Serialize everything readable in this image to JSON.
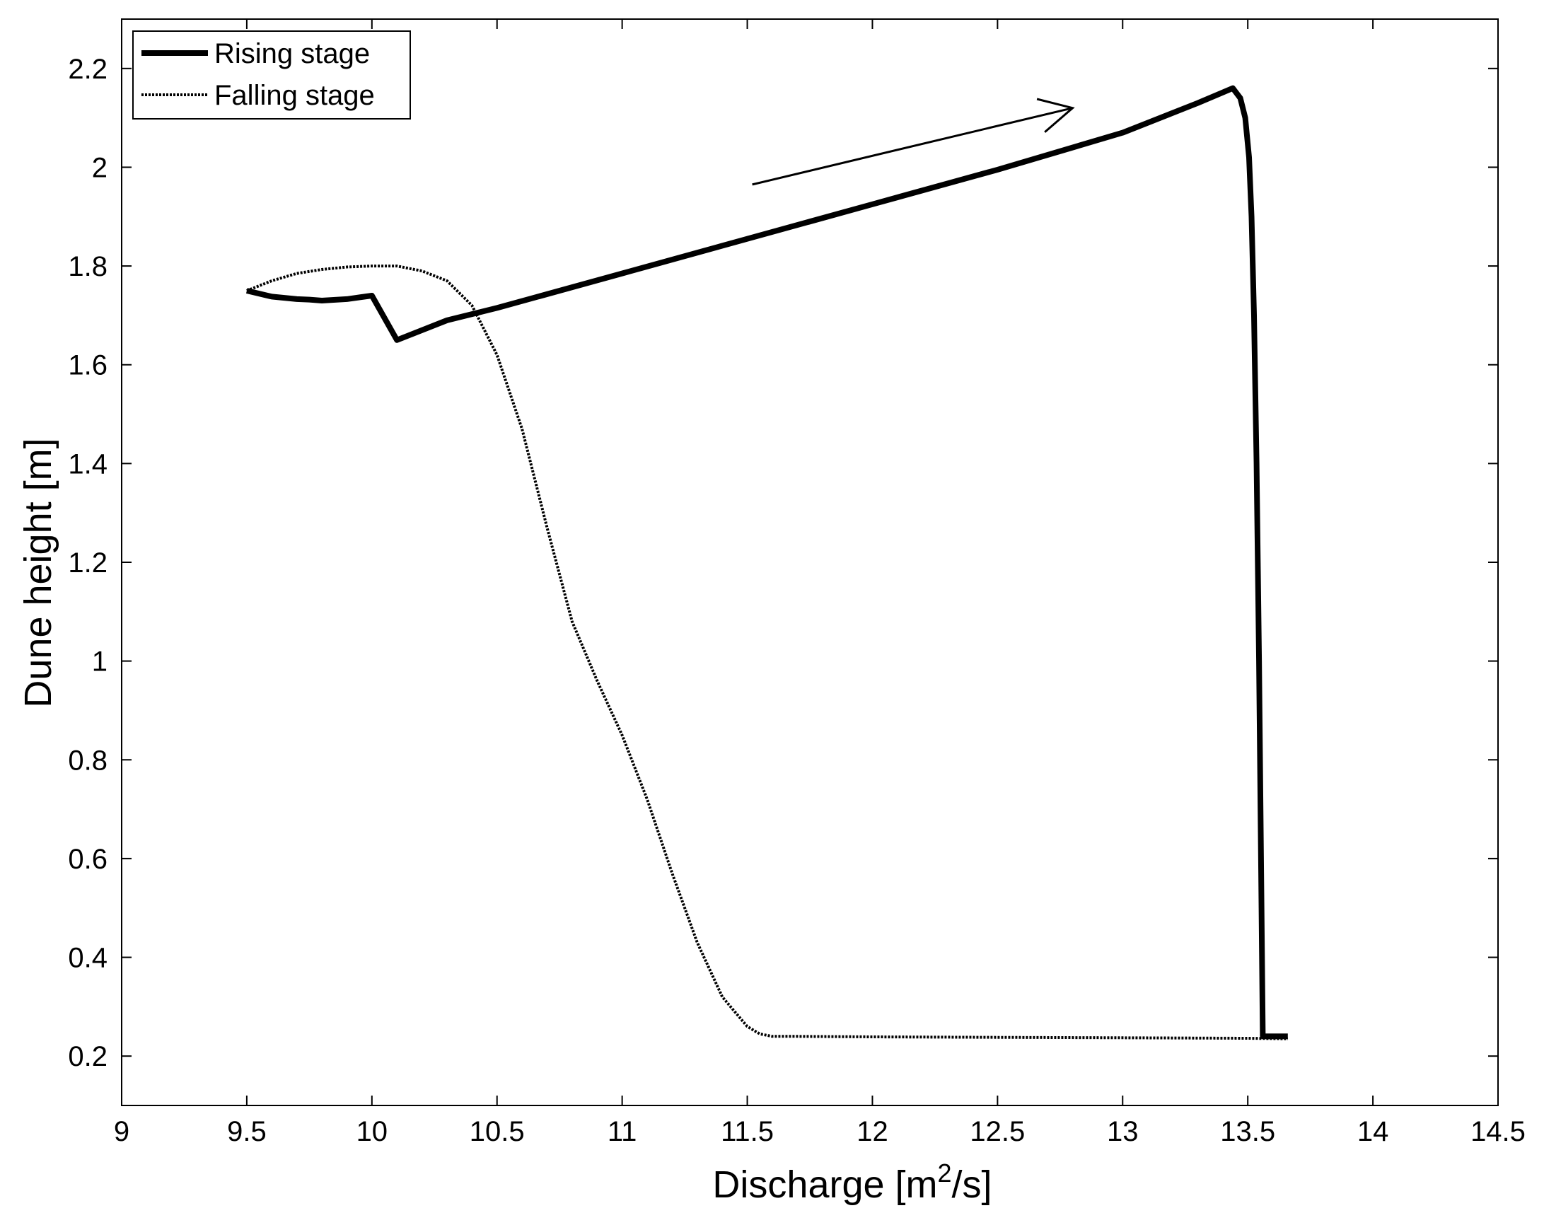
{
  "chart_data": {
    "type": "line",
    "title": "",
    "xlabel": "Discharge [m²/s]",
    "xlabel_parts": {
      "before": "Discharge [m",
      "superscript": "2",
      "after": "/s]"
    },
    "ylabel": "Dune height [m]",
    "xlim": [
      9,
      14.5
    ],
    "ylim": [
      0.1,
      2.3
    ],
    "x_ticks": [
      9,
      9.5,
      10,
      10.5,
      11,
      11.5,
      12,
      12.5,
      13,
      13.5,
      14,
      14.5
    ],
    "x_tick_labels": [
      "9",
      "9.5",
      "10",
      "10.5",
      "11",
      "11.5",
      "12",
      "12.5",
      "13",
      "13.5",
      "14",
      "14.5"
    ],
    "y_ticks": [
      0.2,
      0.4,
      0.6,
      0.8,
      1.0,
      1.2,
      1.4,
      1.6,
      1.8,
      2.0,
      2.2
    ],
    "y_tick_labels": [
      "0.2",
      "0.4",
      "0.6",
      "0.8",
      "1",
      "1.2",
      "1.4",
      "1.6",
      "1.8",
      "2",
      "2.2"
    ],
    "grid": false,
    "legend_position": "top-left",
    "series": [
      {
        "name": "Rising stage",
        "style": "solid-thick",
        "color": "#000000",
        "x": [
          13.66,
          13.56,
          13.555,
          13.545,
          13.535,
          13.525,
          13.515,
          13.505,
          13.49,
          13.47,
          13.44,
          13.3,
          13.0,
          12.5,
          12.0,
          11.5,
          11.0,
          10.5,
          10.3,
          10.1,
          10.0,
          9.9,
          9.8,
          9.75,
          9.7,
          9.6,
          9.5
        ],
        "y": [
          0.24,
          0.24,
          0.5,
          1.0,
          1.4,
          1.7,
          1.9,
          2.02,
          2.1,
          2.14,
          2.16,
          2.13,
          2.07,
          1.995,
          1.925,
          1.855,
          1.785,
          1.715,
          1.69,
          1.65,
          1.74,
          1.733,
          1.73,
          1.732,
          1.733,
          1.738,
          1.75
        ]
      },
      {
        "name": "Falling stage",
        "style": "dotted",
        "color": "#000000",
        "x": [
          9.5,
          9.6,
          9.7,
          9.8,
          9.9,
          10.0,
          10.1,
          10.2,
          10.3,
          10.4,
          10.5,
          10.6,
          10.7,
          10.8,
          10.9,
          11.0,
          11.1,
          11.2,
          11.3,
          11.4,
          11.5,
          11.55,
          11.6,
          11.7,
          12.0,
          12.5,
          13.0,
          13.5,
          13.66
        ],
        "y": [
          1.75,
          1.77,
          1.785,
          1.793,
          1.798,
          1.8,
          1.8,
          1.79,
          1.77,
          1.72,
          1.62,
          1.47,
          1.27,
          1.08,
          0.96,
          0.85,
          0.72,
          0.57,
          0.43,
          0.32,
          0.26,
          0.245,
          0.24,
          0.24,
          0.239,
          0.238,
          0.237,
          0.236,
          0.235
        ]
      }
    ],
    "annotations": [
      {
        "type": "arrow",
        "from": [
          11.52,
          1.965
        ],
        "to": [
          12.8,
          2.12
        ]
      }
    ]
  }
}
